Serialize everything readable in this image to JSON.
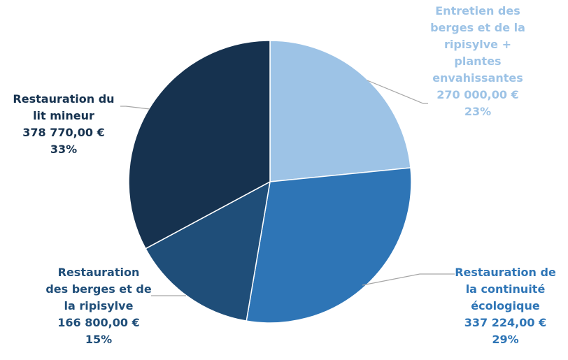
{
  "chart_data": {
    "type": "pie",
    "start_angle_deg": 0,
    "direction": "clockwise",
    "slices": [
      {
        "name_lines": [
          "Entretien des",
          "berges et de la",
          "ripisylve +",
          "plantes",
          "envahissantes"
        ],
        "value": 270000.0,
        "value_label": "270 000,00 €",
        "percent_label": "23%",
        "color": "#9DC3E6",
        "label_color": "#9DC3E6"
      },
      {
        "name_lines": [
          "Restauration de",
          "la continuité",
          "écologique"
        ],
        "value": 337224.0,
        "value_label": "337 224,00 €",
        "percent_label": "29%",
        "color": "#2E75B6",
        "label_color": "#2E75B6"
      },
      {
        "name_lines": [
          "Restauration",
          "des berges et de",
          "la ripisylve"
        ],
        "value": 166800.0,
        "value_label": "166 800,00 €",
        "percent_label": "15%",
        "color": "#1F4E79",
        "label_color": "#1F4E79"
      },
      {
        "name_lines": [
          "Restauration du",
          "lit mineur"
        ],
        "value": 378770.0,
        "value_label": "378 770,00 €",
        "percent_label": "33%",
        "color": "#16324F",
        "label_color": "#16324F"
      }
    ],
    "legend": "none",
    "leader_line_color": "#A6A6A6"
  }
}
